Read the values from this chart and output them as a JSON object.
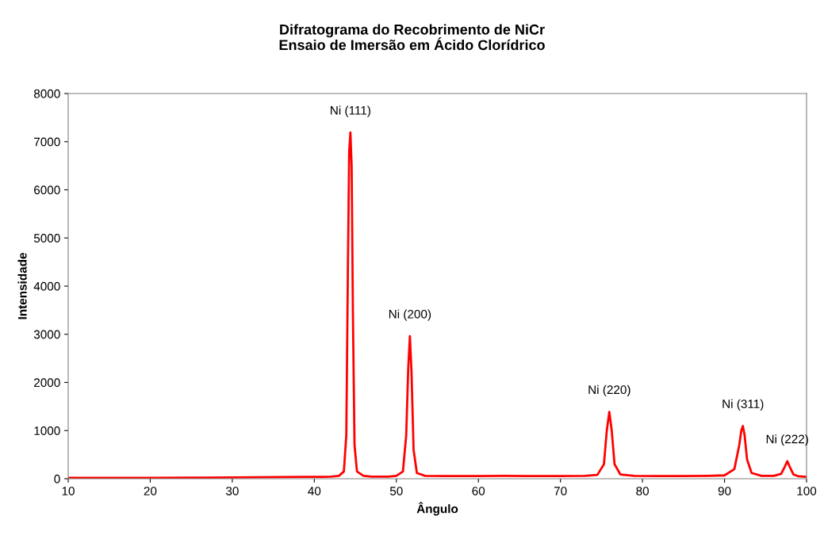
{
  "chart_data": {
    "type": "line",
    "title": "Difratograma do Recobrimento de NiCr\nEnsaio de Imersão em Ácido Clorídrico",
    "xlabel": "Ângulo",
    "ylabel": "Intensidade",
    "xlim": [
      10,
      100
    ],
    "xticks": [
      10,
      20,
      30,
      40,
      50,
      60,
      70,
      80,
      90,
      100
    ],
    "ylim": [
      0,
      8000
    ],
    "yticks": [
      0,
      1000,
      2000,
      3000,
      4000,
      5000,
      6000,
      7000,
      8000
    ],
    "grid": false,
    "legend": false,
    "marker": "none",
    "line_style": "solid",
    "series": [
      {
        "color": "#ff0000",
        "x": [
          10,
          15,
          20,
          25,
          30,
          33,
          36,
          39,
          41,
          42,
          43,
          43.6,
          43.9,
          44.1,
          44.25,
          44.4,
          44.55,
          44.7,
          44.9,
          45.2,
          46,
          47,
          48,
          49,
          50,
          50.8,
          51.2,
          51.45,
          51.65,
          51.85,
          52.1,
          52.5,
          53.5,
          56,
          60,
          63,
          66,
          70,
          73,
          74.5,
          75.3,
          75.65,
          75.96,
          76.25,
          76.6,
          77.3,
          79,
          82,
          85,
          88,
          90,
          91.2,
          91.8,
          92.05,
          92.24,
          92.45,
          92.75,
          93.3,
          94.5,
          96,
          96.9,
          97.35,
          97.65,
          97.95,
          98.4,
          99,
          100
        ],
        "values": [
          20,
          20,
          20,
          22,
          25,
          30,
          35,
          40,
          40,
          45,
          60,
          150,
          900,
          4500,
          6800,
          7190,
          6500,
          3500,
          700,
          150,
          60,
          45,
          45,
          45,
          60,
          150,
          900,
          2300,
          2960,
          2200,
          600,
          120,
          60,
          55,
          55,
          60,
          55,
          55,
          60,
          80,
          300,
          1000,
          1390,
          1000,
          300,
          90,
          60,
          55,
          55,
          60,
          70,
          200,
          700,
          1000,
          1095,
          900,
          400,
          120,
          60,
          60,
          100,
          250,
          365,
          250,
          90,
          50,
          40
        ]
      }
    ],
    "annotations": [
      {
        "text": "Ni (111)",
        "x": 44.4,
        "y": 7190
      },
      {
        "text": "Ni (200)",
        "x": 51.65,
        "y": 2960
      },
      {
        "text": "Ni (220)",
        "x": 75.96,
        "y": 1390
      },
      {
        "text": "Ni (311)",
        "x": 92.24,
        "y": 1095
      },
      {
        "text": "Ni (222)",
        "x": 97.65,
        "y": 365
      }
    ]
  }
}
